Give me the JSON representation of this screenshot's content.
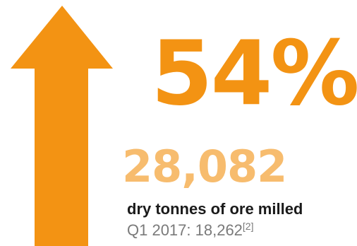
{
  "colors": {
    "arrow": "#F39313",
    "percent": "#F39313",
    "number": "#F7BC6E",
    "label": "#1a1a1a",
    "prior": "#7a7a7a"
  },
  "icon": "up-arrow-icon",
  "stat": {
    "percent": "54%",
    "value": "28,082",
    "label": "dry tonnes of ore milled",
    "prior_text": "Q1 2017: 18,262",
    "footnote": "[2]"
  }
}
